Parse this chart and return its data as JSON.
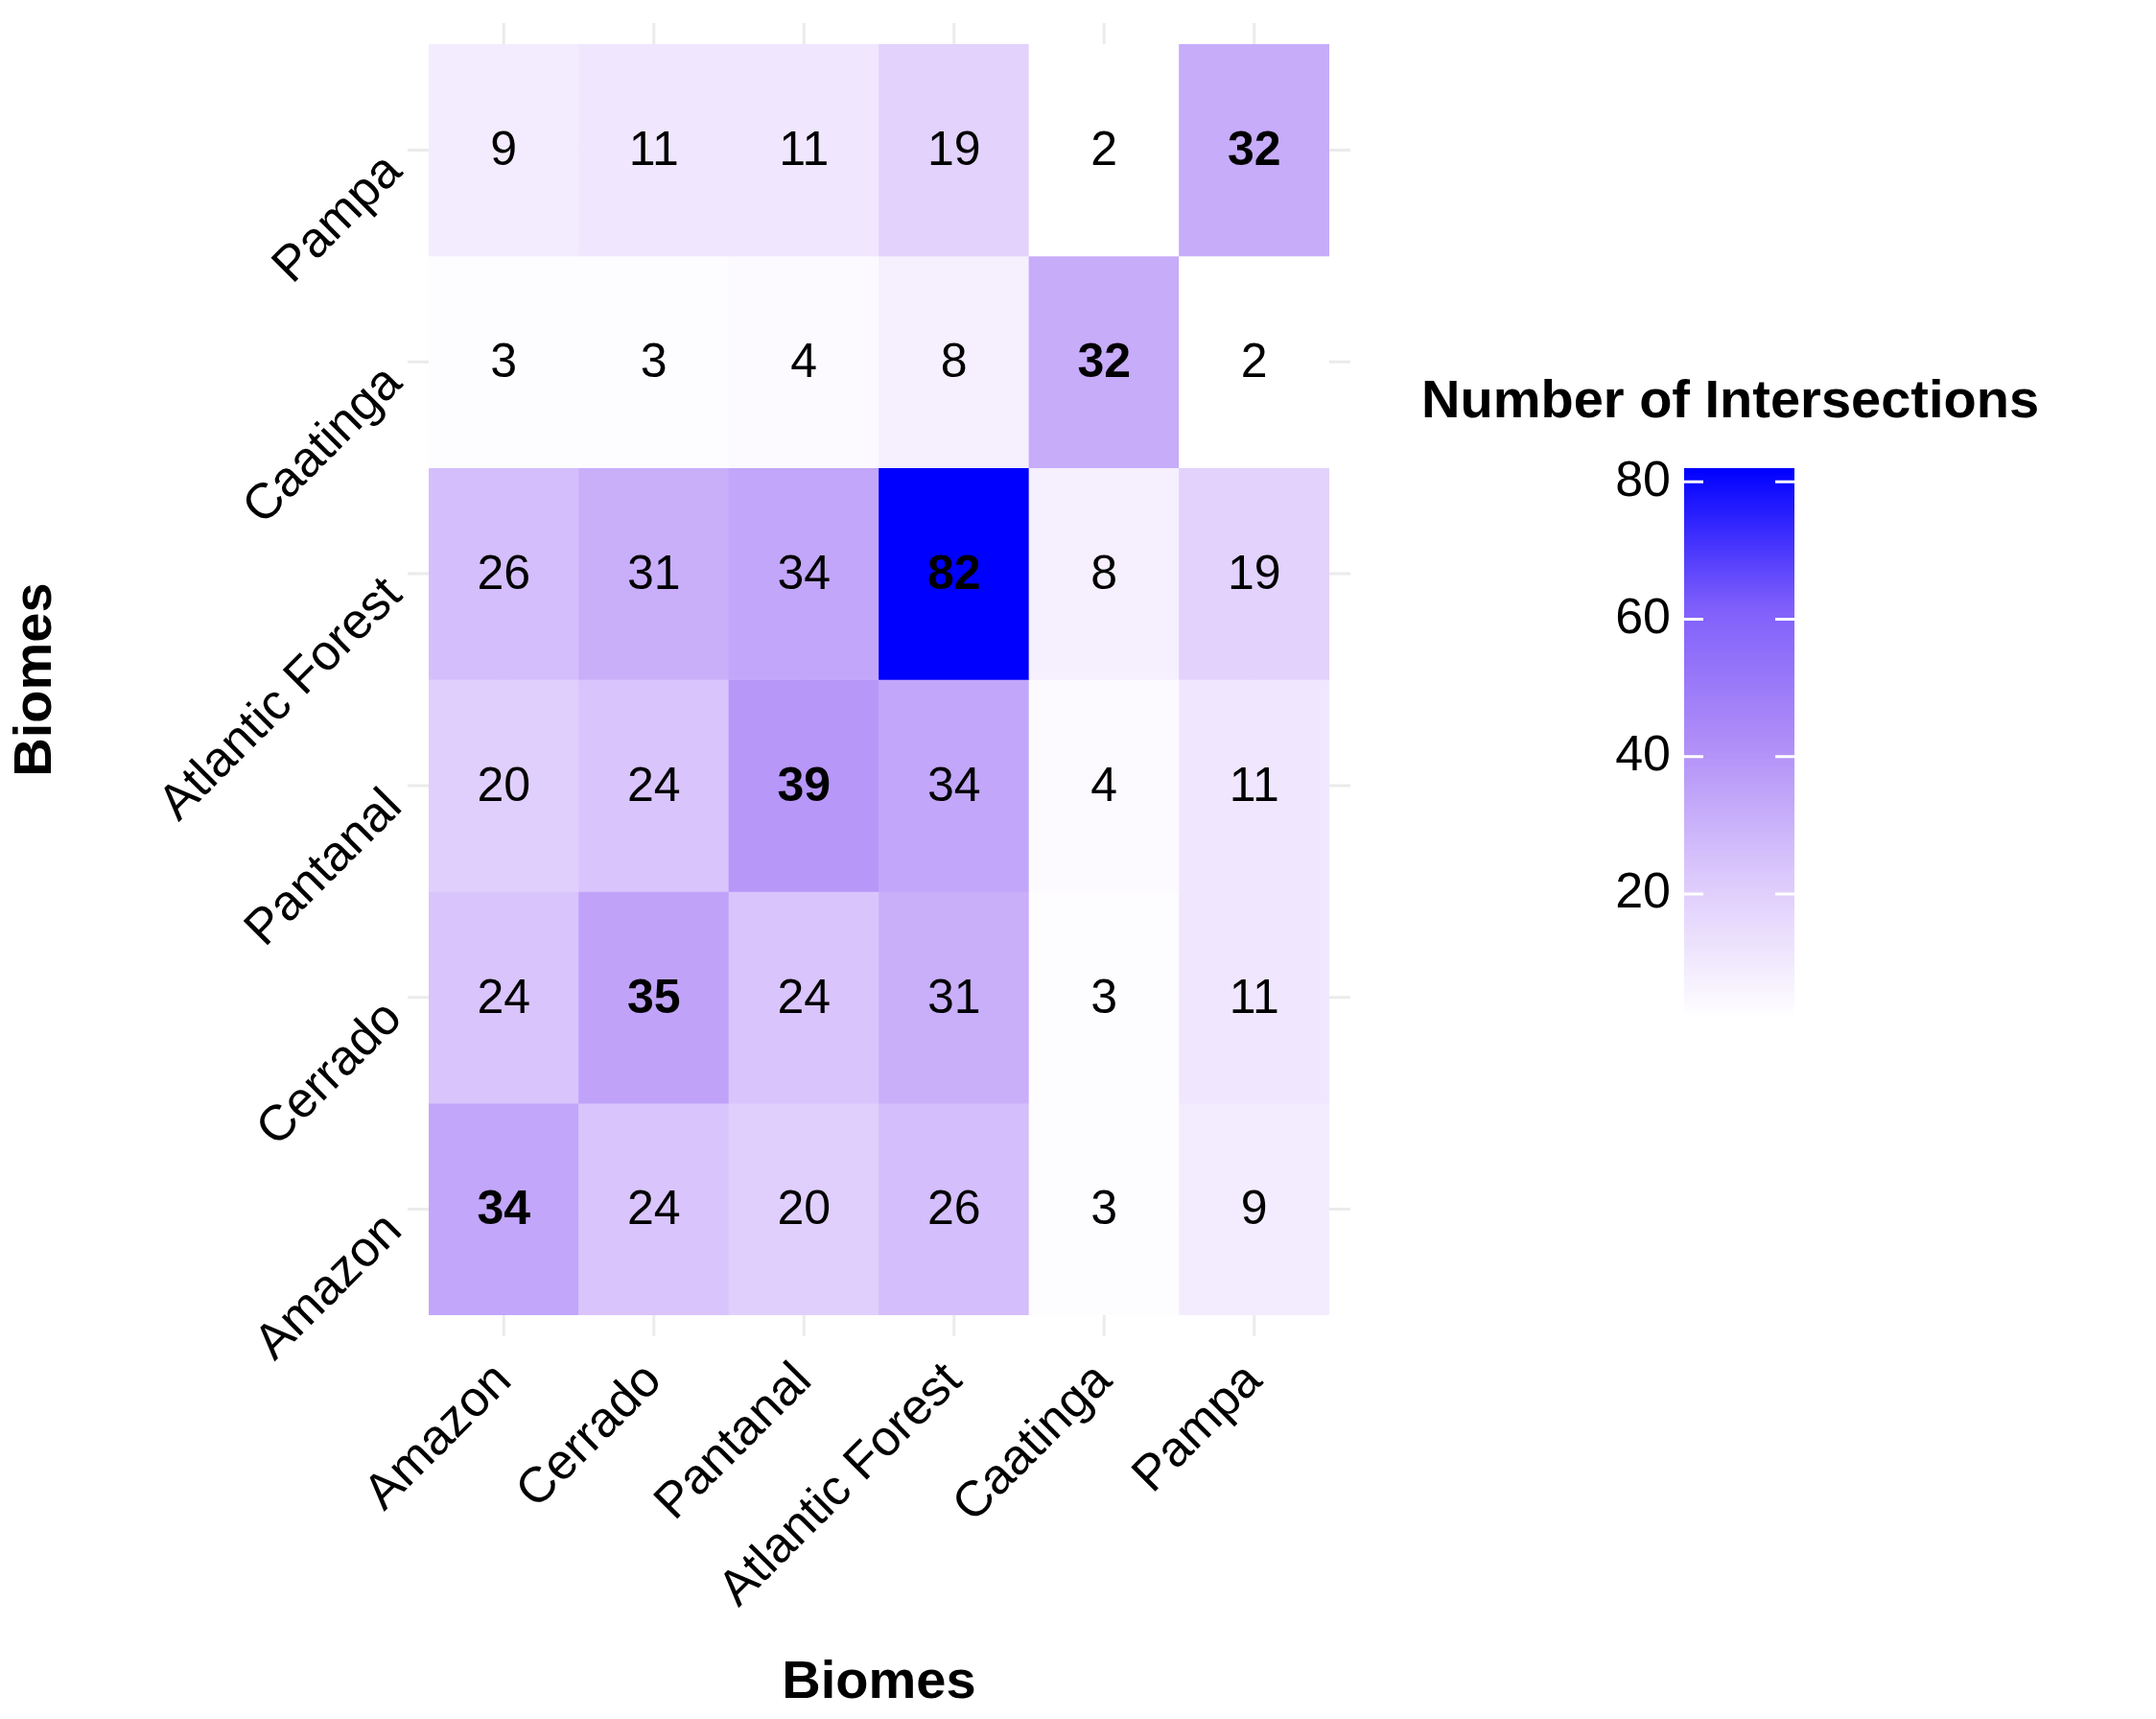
{
  "chart_data": {
    "type": "heatmap",
    "xlabel": "Biomes",
    "ylabel": "Biomes",
    "legend_title": "Number of Intersections",
    "categories": [
      "Amazon",
      "Cerrado",
      "Pantanal",
      "Atlantic Forest",
      "Caatinga",
      "Pampa"
    ],
    "y_categories": [
      "Pampa",
      "Caatinga",
      "Atlantic Forest",
      "Pantanal",
      "Cerrado",
      "Amazon"
    ],
    "cells": [
      [
        9,
        11,
        11,
        19,
        2,
        32
      ],
      [
        3,
        3,
        4,
        8,
        32,
        2
      ],
      [
        26,
        31,
        34,
        82,
        8,
        19
      ],
      [
        20,
        24,
        39,
        34,
        4,
        11
      ],
      [
        24,
        35,
        24,
        31,
        3,
        11
      ],
      [
        34,
        24,
        20,
        26,
        3,
        9
      ]
    ],
    "clim": [
      2,
      82
    ],
    "cticks": [
      20,
      40,
      60,
      80
    ],
    "grid": true,
    "data_labels": true
  }
}
